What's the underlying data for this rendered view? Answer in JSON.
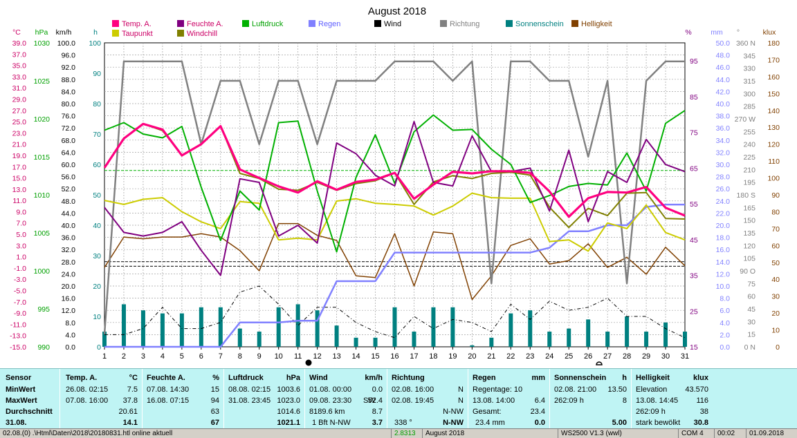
{
  "title": "August 2018",
  "legend": [
    {
      "label": "Temp. A.",
      "color": "#ff0080"
    },
    {
      "label": "Feuchte A.",
      "color": "#800080"
    },
    {
      "label": "Luftdruck",
      "color": "#00b000"
    },
    {
      "label": "Regen",
      "color": "#8080ff"
    },
    {
      "label": "Wind",
      "color": "#000000"
    },
    {
      "label": "Richtung",
      "color": "#808080"
    },
    {
      "label": "Sonnenschein",
      "color": "#008080"
    },
    {
      "label": "Helligkeit",
      "color": "#804000"
    },
    {
      "label": "Taupunkt",
      "color": "#cccc00"
    },
    {
      "label": "Windchill",
      "color": "#808000"
    }
  ],
  "axis_units": {
    "temp": "°C",
    "press": "hPa",
    "wind": "km/h",
    "sun": "h",
    "hum": "%",
    "rain": "mm",
    "dir": "°",
    "lux": "klux"
  },
  "axis_ticks": {
    "temp": [
      "39.0",
      "37.0",
      "35.0",
      "33.0",
      "31.0",
      "29.0",
      "27.0",
      "25.0",
      "23.0",
      "21.0",
      "19.0",
      "17.0",
      "15.0",
      "13.0",
      "11.0",
      "9.0",
      "7.0",
      "5.0",
      "3.0",
      "1.0",
      "-1.0",
      "-3.0",
      "-5.0",
      "-7.0",
      "-9.0",
      "-11.0",
      "-13.0",
      "-15.0"
    ],
    "press": [
      "1030",
      "1025",
      "1020",
      "1015",
      "1010",
      "1005",
      "1000",
      "995",
      "990"
    ],
    "wind": [
      "100.0",
      "96.0",
      "92.0",
      "88.0",
      "84.0",
      "80.0",
      "76.0",
      "72.0",
      "68.0",
      "64.0",
      "60.0",
      "56.0",
      "52.0",
      "48.0",
      "44.0",
      "40.0",
      "36.0",
      "32.0",
      "28.0",
      "24.0",
      "20.0",
      "16.0",
      "12.0",
      "8.0",
      "4.0",
      "0.0"
    ],
    "sun": [
      "100",
      "90",
      "80",
      "70",
      "60",
      "50",
      "40",
      "30",
      "20",
      "10",
      "0"
    ],
    "hum": [
      "95",
      "85",
      "75",
      "65",
      "55",
      "45",
      "35",
      "25",
      "15"
    ],
    "rain": [
      "50.0",
      "48.0",
      "46.0",
      "44.0",
      "42.0",
      "40.0",
      "38.0",
      "36.0",
      "34.0",
      "32.0",
      "30.0",
      "28.0",
      "26.0",
      "24.0",
      "22.0",
      "20.0",
      "18.0",
      "16.0",
      "14.0",
      "12.0",
      "10.0",
      "8.0",
      "6.0",
      "4.0",
      "2.0",
      "0.0"
    ],
    "dir": [
      "360 N",
      "345",
      "330",
      "315",
      "300",
      "285",
      "270 W",
      "255",
      "240",
      "225",
      "210",
      "195",
      "180 S",
      "165",
      "150",
      "135",
      "120",
      "105",
      "90 O",
      "75",
      "60",
      "45",
      "30",
      "15",
      "0 N"
    ],
    "lux": [
      "180",
      "170",
      "160",
      "150",
      "140",
      "130",
      "120",
      "110",
      "100",
      "90",
      "80",
      "70",
      "60",
      "50",
      "40",
      "30",
      "20",
      "10",
      "0"
    ]
  },
  "chart_data": {
    "type": "line",
    "title": "August 2018",
    "x": [
      1,
      2,
      3,
      4,
      5,
      6,
      7,
      8,
      9,
      10,
      11,
      12,
      13,
      14,
      15,
      16,
      17,
      18,
      19,
      20,
      21,
      22,
      23,
      24,
      25,
      26,
      27,
      28,
      29,
      30,
      31
    ],
    "xlim": [
      1,
      31
    ],
    "grid": true,
    "legend_position": "top",
    "series": [
      {
        "name": "Temp. A.",
        "axis": "°C",
        "values": [
          16.8,
          22.0,
          24.6,
          23.6,
          19.0,
          21.0,
          24.2,
          16.5,
          15.0,
          13.5,
          12.4,
          14.4,
          12.9,
          14.3,
          14.7,
          15.9,
          11.3,
          13.8,
          16.1,
          15.8,
          16.2,
          16.2,
          15.9,
          12.6,
          8.1,
          11.4,
          12.5,
          12.4,
          13.4,
          9.7,
          8.3
        ]
      },
      {
        "name": "Feuchte A.",
        "axis": "%",
        "values": [
          54,
          47,
          46,
          47,
          50,
          42,
          35,
          62,
          61,
          46,
          49,
          44,
          72,
          69,
          63,
          60,
          78,
          61,
          60,
          74,
          64,
          64,
          65,
          53,
          70,
          50,
          64,
          61,
          73,
          66,
          64
        ]
      },
      {
        "name": "Luftdruck",
        "axis": "hPa",
        "values": [
          1018.5,
          1019.5,
          1018.0,
          1017.5,
          1019.0,
          1011.0,
          1004.0,
          1010.5,
          1008.0,
          1019.5,
          1019.7,
          1010.5,
          1002.5,
          1012.3,
          1017.9,
          1011.5,
          1018.3,
          1020.5,
          1018.5,
          1018.6,
          1016.0,
          1014.0,
          1009.0,
          1009.9,
          1011.1,
          1011.5,
          1011.3,
          1015.5,
          1010.5,
          1019.4,
          1021.1
        ]
      },
      {
        "name": "Regen",
        "axis": "mm",
        "values": [
          0,
          0,
          0,
          0,
          0,
          0,
          0,
          4.0,
          4.0,
          4.0,
          4.3,
          4.3,
          10.8,
          10.8,
          10.8,
          15.5,
          15.5,
          15.5,
          15.5,
          15.5,
          15.5,
          15.5,
          15.5,
          16.3,
          19.0,
          19.0,
          20.0,
          20.0,
          23.0,
          23.4,
          23.4
        ]
      },
      {
        "name": "Wind",
        "axis": "km/h",
        "values": [
          4,
          4,
          6,
          13,
          6,
          6,
          8,
          18,
          20,
          14,
          7,
          13,
          13,
          8,
          5,
          3,
          10,
          6,
          9,
          8,
          5,
          14,
          9,
          15,
          12,
          13,
          16,
          10,
          10,
          6,
          3
        ]
      },
      {
        "name": "Richtung",
        "axis": "°",
        "values": [
          15,
          338,
          338,
          338,
          338,
          240,
          315,
          315,
          240,
          315,
          315,
          240,
          315,
          315,
          315,
          338,
          338,
          338,
          315,
          338,
          75,
          338,
          338,
          315,
          315,
          225,
          315,
          75,
          315,
          338,
          338
        ]
      },
      {
        "name": "Sonnenschein",
        "axis": "h",
        "values": [
          5,
          14,
          12,
          11,
          11,
          13,
          13,
          6,
          5,
          13,
          14,
          12,
          7,
          3,
          3,
          13,
          5,
          13,
          13,
          0.5,
          3,
          11,
          12,
          5,
          6,
          9,
          5,
          10,
          5,
          8,
          5
        ]
      },
      {
        "name": "Helligkeit",
        "axis": "klux",
        "values": [
          47,
          65,
          64,
          65,
          65,
          67,
          65,
          57,
          45,
          73,
          73,
          66,
          63,
          42,
          41,
          67,
          36,
          68,
          67,
          28,
          42,
          60,
          64,
          49,
          51,
          61,
          47,
          53,
          43,
          59,
          48
        ]
      },
      {
        "name": "Taupunkt",
        "axis": "°C",
        "values": [
          11.0,
          10.3,
          11.2,
          11.5,
          9.0,
          7.2,
          6.0,
          10.8,
          10.5,
          4.0,
          4.3,
          4.0,
          10.9,
          11.3,
          10.5,
          10.3,
          10.0,
          8.4,
          10.0,
          12.3,
          11.5,
          11.4,
          11.4,
          3.7,
          4.0,
          2.0,
          7.0,
          6.0,
          10.2,
          5.3,
          4.0
        ]
      },
      {
        "name": "Windchill",
        "axis": "°C",
        "values": [
          16.8,
          22.0,
          24.6,
          23.4,
          19.0,
          21.0,
          24.2,
          15.8,
          14.9,
          13.0,
          12.8,
          14.2,
          12.8,
          14.0,
          14.5,
          15.9,
          10.3,
          14.3,
          15.4,
          14.9,
          15.8,
          16.0,
          15.5,
          9.8,
          6.2,
          9.6,
          8.3,
          12.3,
          12.4,
          7.8,
          7.7
        ]
      }
    ],
    "reference_lines": [
      {
        "axis": "km/h",
        "value": 58,
        "color": "#00b000"
      },
      {
        "axis": "km/h",
        "value": 28,
        "color": "#000000"
      },
      {
        "axis": "km/h",
        "value": 26.5,
        "color": "#000000"
      }
    ]
  },
  "summary": {
    "sensor": {
      "header": "Sensor",
      "rows": [
        "MinWert",
        "MaxWert",
        "Durchschnitt"
      ],
      "date": "31.08."
    },
    "temp": {
      "header": "Temp. A.",
      "unit": "°C",
      "min_time": "26.08.  02:15",
      "min_val": "7.5",
      "max_time": "07.08.  16:00",
      "max_val": "37.8",
      "avg": "20.61",
      "current": "14.1"
    },
    "hum": {
      "header": "Feuchte A.",
      "unit": "%",
      "min_time": "07.08.  14:30",
      "min_val": "15",
      "max_time": "16.08.  07:15",
      "max_val": "94",
      "avg": "63",
      "current": "67"
    },
    "press": {
      "header": "Luftdruck",
      "unit": "hPa",
      "min_time": "08.08.  02:15",
      "min_val": "1003.6",
      "max_time": "31.08.  23:45",
      "max_val": "1023.0",
      "avg": "1014.6",
      "current": "1021.1"
    },
    "wind": {
      "header": "Wind",
      "unit": "km/h",
      "min_time": "01.08.  00:00",
      "min_val": "0.0",
      "max_time": "09.08.  23:30",
      "max_dir": "SW",
      "max_val": "52.4",
      "dist": "8189.6 km",
      "avg": "8.7",
      "beaufort": "1 Bft  N-NW",
      "current": "3.7"
    },
    "dir": {
      "header": "Richtung",
      "min_time": "02.08.  16:00",
      "min_val": "N",
      "max_time": "02.08.  19:45",
      "max_val": "N",
      "avg": "N-NW",
      "current_deg": "338 °",
      "current": "N-NW"
    },
    "rain": {
      "header": "Regen",
      "unit": "mm",
      "r1": "Regentage: 10",
      "r2_time": "13.08.  14:00",
      "r2_val": "6.4",
      "r3_label": "Gesamt:",
      "r3_val": "23.4",
      "r4_label": "23.4 mm",
      "current": "0.0"
    },
    "sun": {
      "header": "Sonnenschein",
      "unit": "h",
      "min_time": "02.08.  21:00",
      "min_val": "13.50",
      "max_time": "262:09 h",
      "max_val": "8",
      "current": "5.00"
    },
    "lux": {
      "header": "Helligkeit",
      "unit": "klux",
      "r1_label": "Elevation",
      "r1_val": "43.570",
      "r2_time": "13.08.  14:45",
      "r2_val": "116",
      "r3_label": "262:09 h",
      "r3_val": "38",
      "r4_label": "stark bewölkt",
      "current": "30.8"
    }
  },
  "statusbar": {
    "path": "02.08.(0) .\\Html\\Daten\\2018\\20180831.htl   online aktuell",
    "value": "2.8313",
    "month": "August 2018",
    "app": "WS2500 V1.3    (wwl)",
    "com": "COM 4",
    "time": "00:02",
    "date": "01.09.2018"
  }
}
